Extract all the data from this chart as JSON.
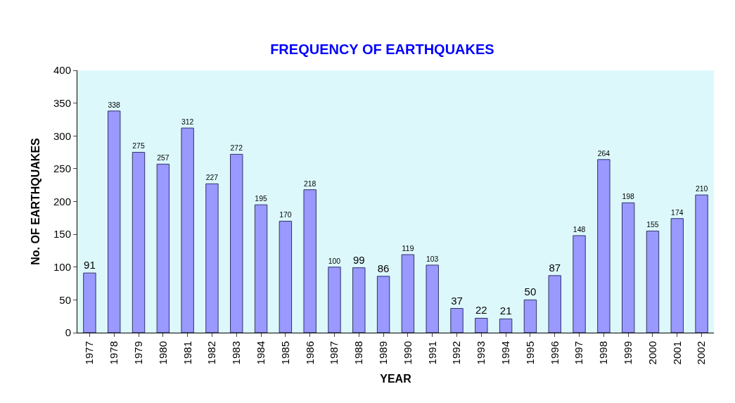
{
  "chart_data": {
    "type": "bar",
    "title": "FREQUENCY OF EARTHQUAKES",
    "xlabel": "YEAR",
    "ylabel": "No. OF EARTHQUAKES",
    "categories": [
      "1977",
      "1978",
      "1979",
      "1980",
      "1981",
      "1982",
      "1983",
      "1984",
      "1985",
      "1986",
      "1987",
      "1988",
      "1989",
      "1990",
      "1991",
      "1992",
      "1993",
      "1994",
      "1995",
      "1996",
      "1997",
      "1998",
      "1999",
      "2000",
      "2001",
      "2002"
    ],
    "values": [
      91,
      338,
      275,
      257,
      312,
      227,
      272,
      195,
      170,
      218,
      100,
      99,
      86,
      119,
      103,
      37,
      22,
      21,
      50,
      87,
      148,
      264,
      198,
      155,
      174,
      210
    ],
    "color": "#9999ff",
    "ylim": [
      0,
      400
    ],
    "yticks": [
      0,
      50,
      100,
      150,
      200,
      250,
      300,
      350,
      400
    ],
    "grid": false,
    "legend": false,
    "data_labels": true
  }
}
